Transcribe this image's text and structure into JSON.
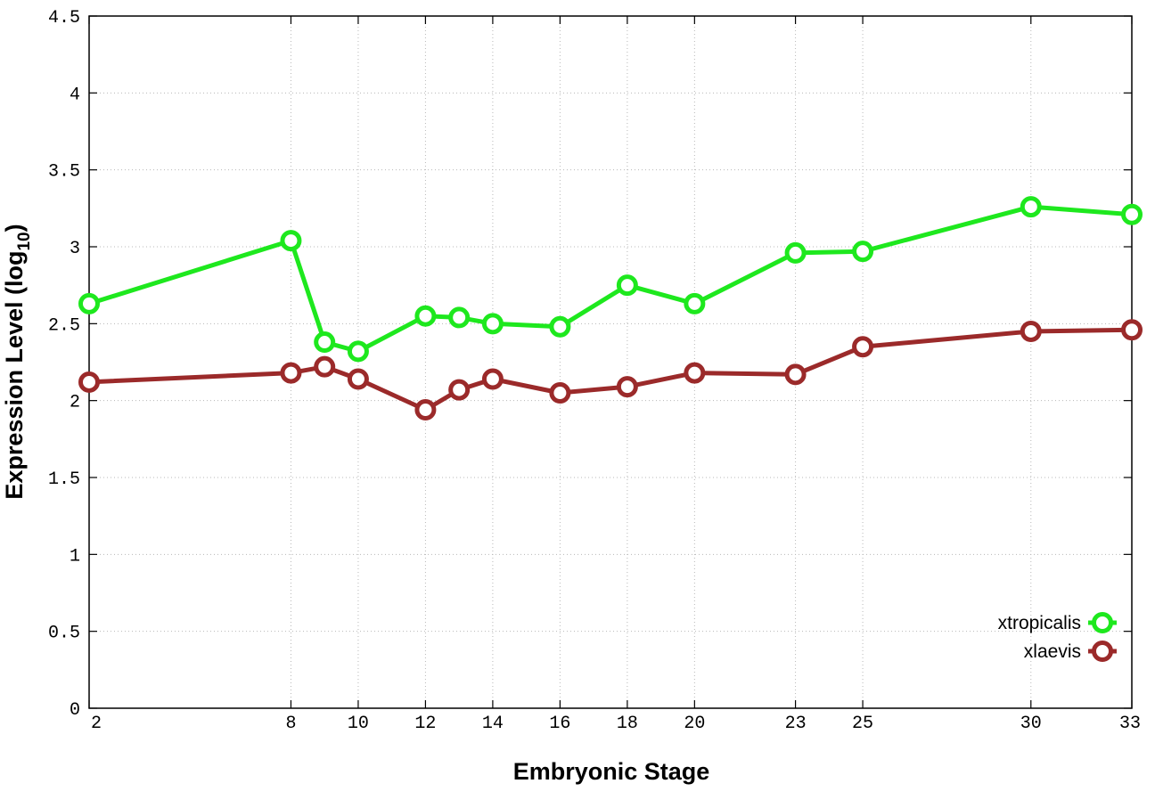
{
  "chart_data": {
    "type": "line",
    "title": "",
    "xlabel": "Embryonic Stage",
    "ylabel_main": "Expression Level (log",
    "ylabel_sub": "10",
    "ylabel_close": ")",
    "x_ticks": [
      2,
      8,
      10,
      12,
      14,
      16,
      18,
      20,
      23,
      25,
      30,
      33
    ],
    "y_ticks": [
      "0",
      "0.5",
      "1",
      "1.5",
      "2",
      "2.5",
      "3",
      "3.5",
      "4",
      "4.5"
    ],
    "ylim": [
      0,
      4.5
    ],
    "grid": true,
    "legend_position": "bottom-right",
    "series": [
      {
        "name": "xtropicalis",
        "color": "#1ee81e",
        "x": [
          2,
          8,
          9,
          10,
          12,
          13,
          14,
          16,
          18,
          20,
          23,
          25,
          30,
          33
        ],
        "values": [
          2.63,
          3.04,
          2.38,
          2.32,
          2.55,
          2.54,
          2.5,
          2.48,
          2.75,
          2.63,
          2.96,
          2.97,
          3.26,
          3.21
        ]
      },
      {
        "name": "xlaevis",
        "color": "#9b2a2a",
        "x": [
          2,
          8,
          9,
          10,
          12,
          13,
          14,
          16,
          18,
          20,
          23,
          25,
          30,
          33
        ],
        "values": [
          2.12,
          2.18,
          2.22,
          2.14,
          1.94,
          2.07,
          2.14,
          2.05,
          2.09,
          2.18,
          2.17,
          2.35,
          2.45,
          2.46
        ]
      }
    ]
  }
}
